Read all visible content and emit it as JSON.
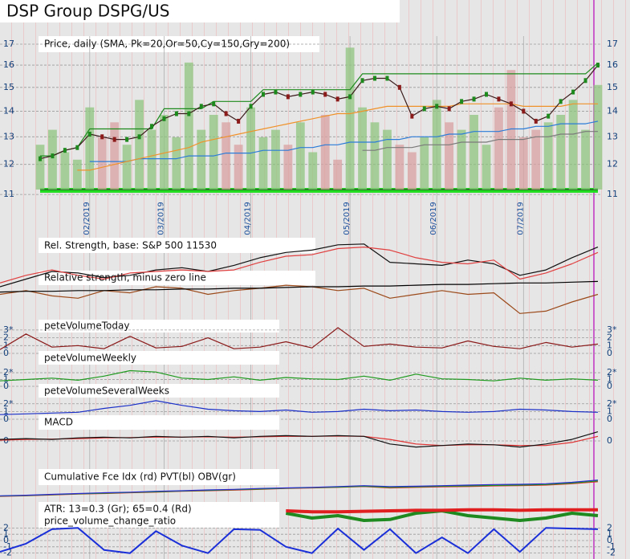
{
  "title": "DSP Group DSPG/US",
  "chart_data": [
    {
      "type": "line",
      "title": "Price, daily (SMA, Pk=20,Or=50,Cy=150,Gry=200)",
      "log_scale": true,
      "ylim": [
        10.8,
        17.4
      ],
      "yticks": [
        11,
        12,
        13,
        14,
        15,
        16,
        17
      ],
      "y2lim": [
        0,
        100
      ],
      "categories": [
        null,
        null,
        null,
        null,
        "02/2019",
        null,
        null,
        null,
        null,
        null,
        "03/2019",
        null,
        null,
        null,
        null,
        null,
        null,
        "04/2019",
        null,
        null,
        null,
        null,
        null,
        null,
        null,
        "05/2019",
        null,
        null,
        null,
        null,
        null,
        null,
        "06/2019",
        null,
        null,
        null,
        null,
        null,
        null,
        "07/2019",
        null,
        null,
        null,
        null,
        null,
        null
      ],
      "series": [
        {
          "color": "#8fc47f",
          "down_color": "#d9a0a0",
          "style": "bar",
          "axis": "y2",
          "values": [
            30,
            40,
            25,
            20,
            55,
            35,
            45,
            30,
            60,
            40,
            50,
            35,
            85,
            40,
            50,
            45,
            30,
            55,
            35,
            40,
            30,
            45,
            25,
            50,
            20,
            95,
            55,
            45,
            40,
            30,
            25,
            35,
            60,
            45,
            40,
            50,
            30,
            55,
            80,
            35,
            40,
            45,
            50,
            60,
            40,
            70
          ]
        },
        {
          "color": "#7a7a7a",
          "values": [
            null,
            null,
            null,
            null,
            null,
            null,
            null,
            null,
            null,
            null,
            null,
            null,
            null,
            null,
            null,
            null,
            null,
            null,
            null,
            null,
            null,
            null,
            null,
            null,
            null,
            null,
            12.5,
            12.5,
            12.6,
            12.6,
            12.6,
            12.7,
            12.7,
            12.7,
            12.8,
            12.8,
            12.8,
            12.9,
            12.9,
            12.9,
            13.0,
            13.0,
            13.1,
            13.1,
            13.2,
            13.2
          ]
        },
        {
          "color": "#2b7bd8",
          "values": [
            null,
            null,
            null,
            null,
            12.1,
            12.1,
            12.1,
            12.1,
            12.2,
            12.2,
            12.2,
            12.2,
            12.3,
            12.3,
            12.3,
            12.4,
            12.4,
            12.4,
            12.5,
            12.5,
            12.5,
            12.6,
            12.6,
            12.7,
            12.7,
            12.8,
            12.8,
            12.8,
            12.9,
            12.9,
            13.0,
            13.0,
            13.0,
            13.1,
            13.1,
            13.2,
            13.2,
            13.2,
            13.3,
            13.3,
            13.4,
            13.4,
            13.5,
            13.5,
            13.5,
            13.6
          ]
        },
        {
          "color": "#f0922a",
          "values": [
            null,
            null,
            null,
            11.8,
            11.8,
            11.9,
            12.0,
            12.1,
            12.2,
            12.3,
            12.4,
            12.5,
            12.6,
            12.8,
            12.9,
            13.0,
            13.1,
            13.2,
            13.3,
            13.4,
            13.5,
            13.6,
            13.7,
            13.8,
            13.9,
            13.9,
            14.0,
            14.1,
            14.2,
            14.2,
            14.2,
            14.2,
            14.2,
            14.2,
            14.3,
            14.3,
            14.3,
            14.3,
            14.3,
            14.2,
            14.2,
            14.2,
            14.2,
            14.3,
            14.3,
            14.3
          ]
        },
        {
          "color": "#1d8a1d",
          "values": [
            12.3,
            12.3,
            12.5,
            12.6,
            13.3,
            13.3,
            13.3,
            13.3,
            13.3,
            13.3,
            14.1,
            14.1,
            14.1,
            14.1,
            14.4,
            14.4,
            14.4,
            14.4,
            14.9,
            14.9,
            14.9,
            14.9,
            14.9,
            14.9,
            14.9,
            14.9,
            15.6,
            15.6,
            15.6,
            15.6,
            15.6,
            15.6,
            15.6,
            15.6,
            15.6,
            15.6,
            15.6,
            15.6,
            15.6,
            15.6,
            15.6,
            15.6,
            15.6,
            15.6,
            15.6,
            16.1
          ]
        },
        {
          "color": "#3a1a1a",
          "values": [
            12.2,
            12.3,
            12.5,
            12.6,
            13.1,
            13.0,
            12.9,
            12.9,
            13.0,
            13.4,
            13.7,
            13.9,
            13.9,
            14.2,
            14.3,
            13.9,
            13.6,
            14.2,
            14.7,
            14.8,
            14.6,
            14.7,
            14.8,
            14.7,
            14.5,
            14.6,
            15.3,
            15.4,
            15.4,
            15.0,
            13.8,
            14.1,
            14.2,
            14.1,
            14.4,
            14.5,
            14.7,
            14.5,
            14.3,
            14.0,
            13.6,
            13.8,
            14.4,
            14.8,
            15.3,
            16.0
          ]
        }
      ]
    },
    {
      "type": "line",
      "title": "Rel. Strength, base: S&P 500 11530",
      "subtitle": "Relative strength, minus zero line",
      "ylim": [
        0,
        100
      ],
      "series": [
        {
          "color": "#111111",
          "values": [
            40,
            50,
            60,
            58,
            52,
            55,
            62,
            65,
            60,
            68,
            78,
            85,
            88,
            95,
            96,
            72,
            70,
            68,
            75,
            70,
            55,
            62,
            78,
            92
          ]
        },
        {
          "color": "#e04040",
          "values": [
            45,
            55,
            62,
            55,
            50,
            58,
            60,
            62,
            60,
            62,
            72,
            80,
            82,
            90,
            92,
            88,
            78,
            72,
            70,
            75,
            50,
            58,
            70,
            85
          ]
        },
        {
          "color": "#9b4a1a",
          "values": [
            30,
            35,
            28,
            25,
            35,
            32,
            40,
            38,
            30,
            35,
            38,
            42,
            40,
            35,
            38,
            25,
            30,
            35,
            30,
            32,
            5,
            8,
            20,
            30
          ]
        },
        {
          "color": "#000000",
          "values": [
            33,
            34,
            34,
            35,
            35,
            36,
            36,
            37,
            37,
            38,
            38,
            39,
            40,
            40,
            41,
            41,
            42,
            43,
            43,
            44,
            45,
            45,
            46,
            47
          ]
        }
      ]
    },
    {
      "type": "line",
      "title": "peteVolumeToday",
      "ylim": [
        0,
        3.3
      ],
      "yticks": [
        {
          "value": 3,
          "label": "3*"
        },
        2,
        1,
        0
      ],
      "series": [
        {
          "color": "#8b1a1a",
          "values": [
            0.5,
            2.5,
            0.8,
            1.0,
            0.6,
            2.2,
            0.7,
            0.9,
            2.0,
            0.6,
            0.8,
            1.5,
            0.7,
            3.3,
            0.9,
            1.2,
            0.8,
            0.7,
            1.6,
            0.9,
            0.6,
            1.4,
            0.8,
            1.2
          ]
        }
      ]
    },
    {
      "type": "line",
      "title": "peteVolumeWeekly",
      "ylim": [
        0,
        2.6
      ],
      "yticks": [
        {
          "value": 2,
          "label": "2*"
        },
        1,
        0
      ],
      "series": [
        {
          "color": "#1f9a1f",
          "values": [
            0.8,
            1.0,
            1.2,
            0.9,
            1.5,
            2.3,
            2.1,
            1.2,
            1.0,
            1.4,
            0.9,
            1.3,
            1.1,
            1.0,
            1.5,
            0.9,
            1.8,
            1.1,
            1.0,
            0.8,
            1.2,
            0.9,
            1.1,
            0.9
          ]
        }
      ]
    },
    {
      "type": "line",
      "title": "peteVolumeSeveralWeeks",
      "ylim": [
        0,
        2.6
      ],
      "yticks": [
        {
          "value": 2,
          "label": "2*"
        },
        1,
        0
      ],
      "series": [
        {
          "color": "#1a2fc8",
          "values": [
            0.6,
            0.7,
            0.8,
            0.9,
            1.4,
            1.8,
            2.4,
            1.8,
            1.3,
            1.1,
            1.0,
            1.2,
            0.9,
            1.0,
            1.3,
            1.1,
            1.2,
            1.0,
            0.9,
            1.0,
            1.3,
            1.2,
            1.0,
            0.9
          ]
        }
      ]
    },
    {
      "type": "line",
      "title": "MACD",
      "ylim": [
        -1,
        1
      ],
      "yticks": [
        0
      ],
      "series": [
        {
          "color": "#e03030",
          "values": [
            0.05,
            0.1,
            0.12,
            0.15,
            0.2,
            0.22,
            0.25,
            0.25,
            0.27,
            0.25,
            0.27,
            0.3,
            0.3,
            0.32,
            0.3,
            0.1,
            -0.2,
            -0.3,
            -0.25,
            -0.25,
            -0.3,
            -0.3,
            -0.1,
            0.3
          ]
        },
        {
          "color": "#111111",
          "values": [
            0.1,
            0.15,
            0.1,
            0.2,
            0.25,
            0.2,
            0.3,
            0.25,
            0.3,
            0.2,
            0.3,
            0.35,
            0.3,
            0.35,
            0.3,
            -0.2,
            -0.4,
            -0.3,
            -0.2,
            -0.25,
            -0.4,
            -0.2,
            0.1,
            0.6
          ]
        }
      ]
    },
    {
      "type": "line",
      "title": "Cumulative Fce Idx (rd) PVT(bl) OBV(gr)",
      "ylim": [
        0,
        100
      ],
      "series": [
        {
          "color": "#e03030",
          "values": [
            20,
            22,
            25,
            28,
            30,
            33,
            35,
            38,
            40,
            42,
            45,
            48,
            50,
            52,
            55,
            50,
            52,
            54,
            55,
            57,
            58,
            60,
            65,
            72
          ]
        },
        {
          "color": "#1f9a1f",
          "values": [
            21,
            23,
            26,
            29,
            31,
            34,
            36,
            39,
            41,
            44,
            46,
            49,
            51,
            53,
            56,
            52,
            54,
            56,
            57,
            59,
            60,
            62,
            67,
            75
          ]
        },
        {
          "color": "#2a2ad0",
          "values": [
            22,
            24,
            27,
            30,
            33,
            35,
            38,
            40,
            43,
            45,
            48,
            50,
            52,
            55,
            58,
            55,
            56,
            58,
            60,
            62,
            63,
            65,
            70,
            78
          ]
        }
      ]
    },
    {
      "type": "line",
      "title": "ATR: 13=0.3 (Gr); 65=0.4 (Rd)",
      "ylim": [
        0,
        1
      ],
      "series": [
        {
          "color": "#1f8a1f",
          "width": 4,
          "values": [
            null,
            null,
            null,
            null,
            null,
            null,
            null,
            null,
            null,
            null,
            null,
            0.35,
            0.25,
            0.3,
            0.2,
            0.22,
            0.35,
            0.4,
            0.3,
            0.25,
            0.2,
            0.25,
            0.35,
            0.3
          ]
        },
        {
          "color": "#e02020",
          "width": 4,
          "values": [
            null,
            null,
            null,
            null,
            null,
            null,
            null,
            null,
            null,
            null,
            null,
            0.4,
            0.38,
            0.38,
            0.39,
            0.4,
            0.41,
            0.41,
            0.42,
            0.42,
            0.41,
            0.42,
            0.42,
            0.42
          ]
        }
      ]
    },
    {
      "type": "line",
      "title": "price_volume_change_ratio",
      "ylim": [
        -2.3,
        2.3
      ],
      "yticks": [
        2,
        1,
        0,
        -1,
        -2
      ],
      "series": [
        {
          "color": "#1a2fd8",
          "width": 2,
          "values": [
            -1.8,
            -0.5,
            1.8,
            2.0,
            -1.5,
            -2.0,
            1.5,
            -0.8,
            -2.0,
            1.8,
            1.7,
            -1.0,
            -2.0,
            1.9,
            -1.5,
            1.8,
            -2.0,
            0.5,
            -2.0,
            1.8,
            -1.8,
            2.0,
            1.9,
            1.8
          ]
        }
      ]
    }
  ]
}
